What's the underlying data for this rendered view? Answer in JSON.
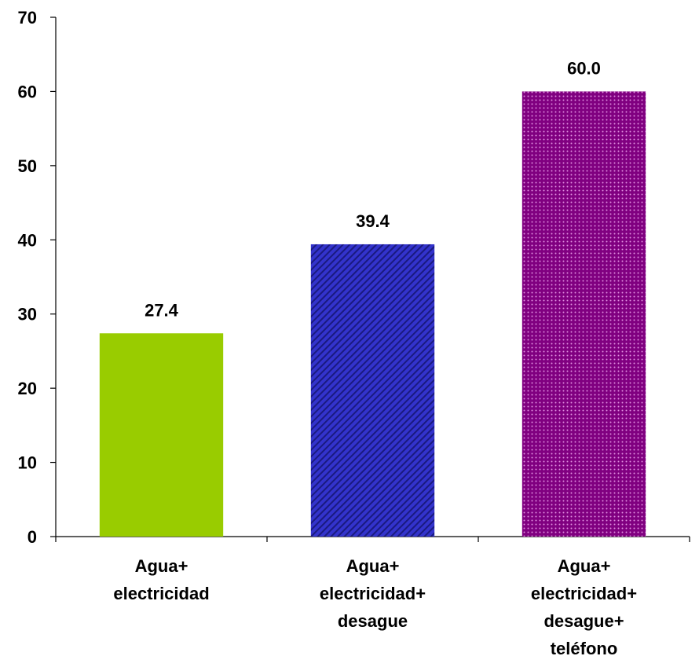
{
  "chart_data": {
    "type": "bar",
    "title": "",
    "xlabel": "",
    "ylabel": "",
    "ylim": [
      0,
      70
    ],
    "yticks": [
      0,
      10,
      20,
      30,
      40,
      50,
      60,
      70
    ],
    "grid": false,
    "legend": "none",
    "categories": [
      [
        "Agua+",
        "electricidad"
      ],
      [
        "Agua+",
        "electricidad+",
        "desague"
      ],
      [
        "Agua+",
        "electricidad+",
        "desague+",
        "teléfono"
      ]
    ],
    "values": [
      27.4,
      39.4,
      60.0
    ],
    "data_labels": [
      "27.4",
      "39.4",
      "60.0"
    ],
    "colors": [
      "#99cc00",
      "#3333cc",
      "#800080"
    ],
    "patterns": [
      "solid",
      "diagonal-stripes",
      "dots"
    ]
  }
}
